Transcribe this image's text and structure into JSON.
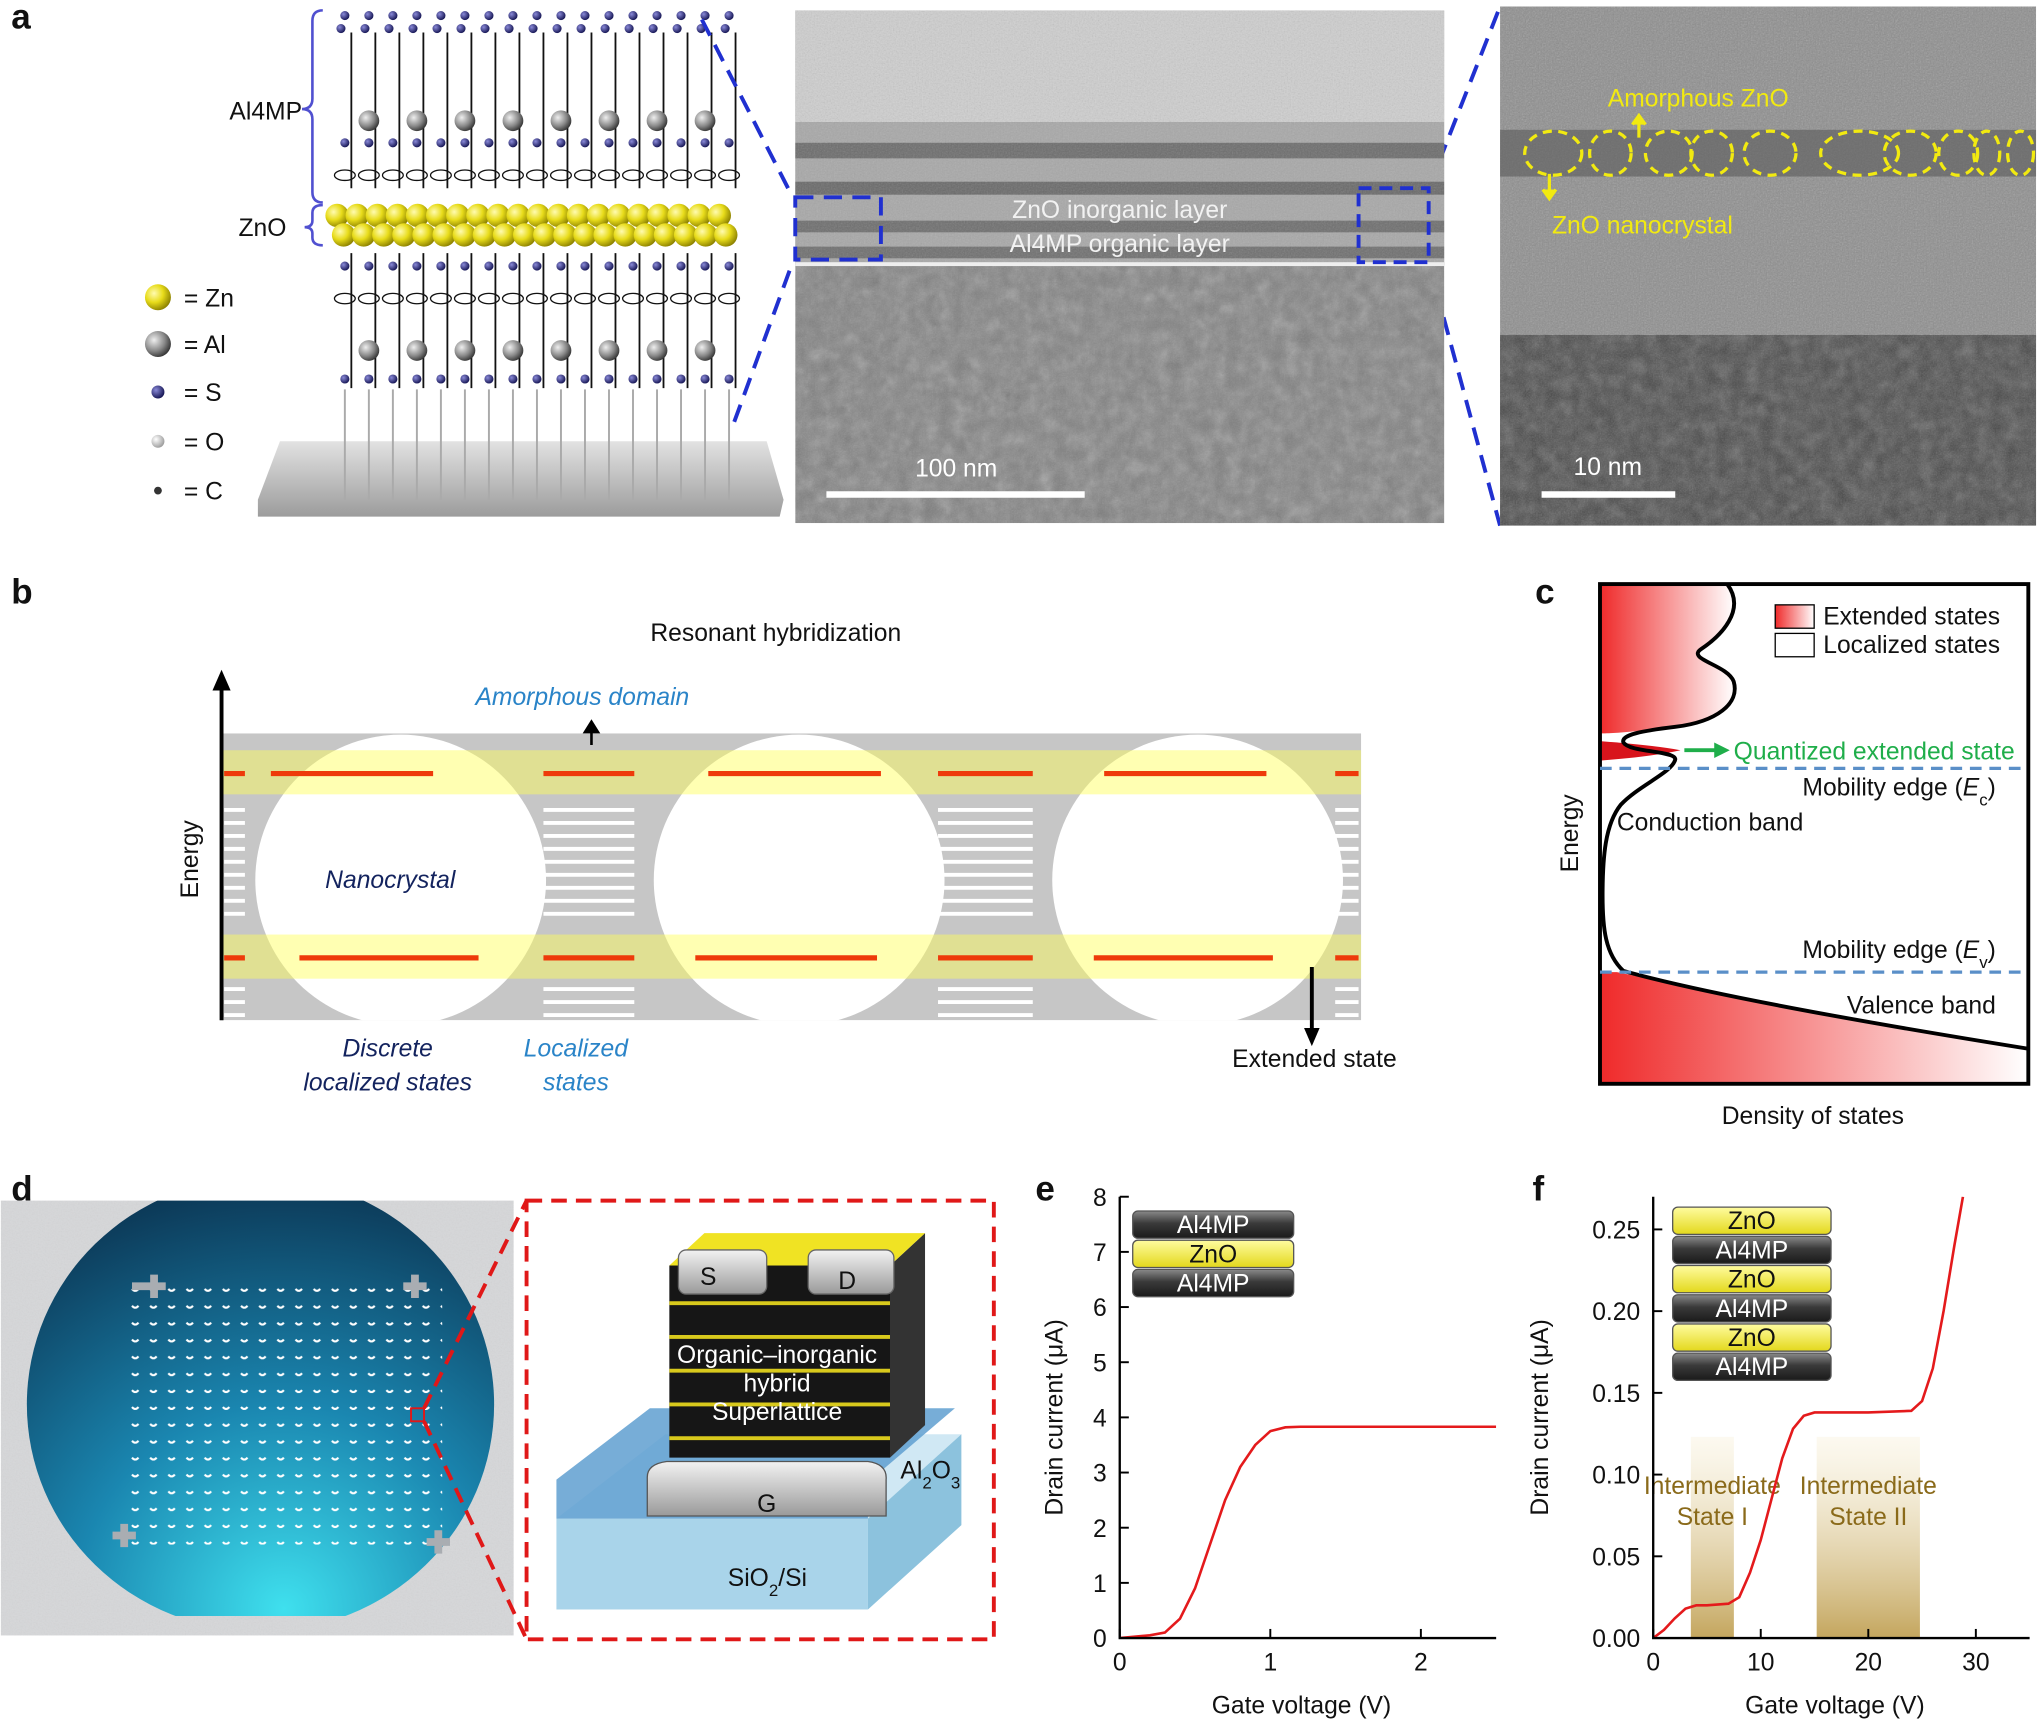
{
  "panel_labels": [
    "a",
    "b",
    "c",
    "d",
    "e",
    "f"
  ],
  "panel_a": {
    "schematic": {
      "layer_labels": [
        "Al4MP",
        "ZnO"
      ],
      "legend": [
        "= Zn",
        "= Al",
        "= S",
        "= O",
        "= C"
      ]
    },
    "tem": {
      "layer_labels": [
        "ZnO inorganic layer",
        "Al4MP organic layer"
      ],
      "scale_bar": "100 nm"
    },
    "hrtem": {
      "annotations": [
        "Amorphous ZnO",
        "ZnO nanocrystal"
      ],
      "scale_bar": "10 nm"
    }
  },
  "panel_b": {
    "title": "Resonant hybridization",
    "axis_label": "Energy",
    "amorphous": "Amorphous domain",
    "nanocrystal": "Nanocrystal",
    "discrete": [
      "Discrete",
      "localized states"
    ],
    "localized": [
      "Localized",
      "states"
    ],
    "extended": "Extended state"
  },
  "panel_c": {
    "legend": [
      "Extended states",
      "Localized states"
    ],
    "x_label": "Density of states",
    "y_label": "Energy",
    "quantized": "Quantized extended state",
    "mobility_edge_c": [
      "Mobility edge (",
      "E",
      "c",
      ")"
    ],
    "conduction": "Conduction band",
    "mobility_edge_v": [
      "Mobility edge (",
      "E",
      "v",
      ")"
    ],
    "valence": "Valence band"
  },
  "panel_d": {
    "contacts": [
      "S",
      "D"
    ],
    "stack": [
      "Organic–inorganic",
      "hybrid",
      "Superlattice"
    ],
    "gate": "G",
    "dielectric": [
      "Al",
      "2",
      "O",
      "3"
    ],
    "substrate": [
      "SiO",
      "2",
      "/Si"
    ]
  },
  "chart_data": [
    {
      "type": "line",
      "x_label": "Gate voltage (V)",
      "y_label": "Drain current (μA)",
      "inset": [
        "Al4MP",
        "ZnO",
        "Al4MP"
      ],
      "x": [
        0,
        0.2,
        0.3,
        0.4,
        0.5,
        0.6,
        0.7,
        0.8,
        0.9,
        1.0,
        1.1,
        1.2,
        1.5,
        2.0,
        2.5
      ],
      "series": [
        {
          "color": "#e41a1c",
          "values": [
            0,
            0.05,
            0.1,
            0.35,
            0.9,
            1.7,
            2.5,
            3.1,
            3.5,
            3.75,
            3.82,
            3.83,
            3.83,
            3.83,
            3.83
          ]
        }
      ],
      "xlim": [
        0,
        2.5
      ],
      "xticks": [
        0,
        1,
        2
      ],
      "ylim": [
        0,
        8
      ],
      "yticks": [
        0,
        1,
        2,
        3,
        4,
        5,
        6,
        7,
        8
      ]
    },
    {
      "type": "line",
      "x_label": "Gate voltage (V)",
      "y_label": "Drain current (μA)",
      "inset": [
        "ZnO",
        "Al4MP",
        "ZnO",
        "Al4MP",
        "ZnO",
        "Al4MP"
      ],
      "bands": [
        {
          "label": [
            "Intermediate",
            "State I"
          ],
          "x": [
            3.5,
            7.5
          ]
        },
        {
          "label": [
            "Intermediate",
            "State II"
          ],
          "x": [
            15.2,
            24.8
          ]
        }
      ],
      "x": [
        0,
        1,
        2,
        3,
        4,
        5,
        7,
        8,
        9,
        10,
        11,
        12,
        13,
        14,
        15,
        17,
        20,
        24,
        25,
        26,
        27,
        28,
        28.8
      ],
      "series": [
        {
          "color": "#e41a1c",
          "values": [
            0,
            0.005,
            0.012,
            0.018,
            0.02,
            0.02,
            0.021,
            0.025,
            0.04,
            0.06,
            0.085,
            0.11,
            0.128,
            0.136,
            0.138,
            0.138,
            0.138,
            0.139,
            0.145,
            0.165,
            0.2,
            0.24,
            0.27
          ]
        }
      ],
      "xlim": [
        0,
        35
      ],
      "xticks": [
        0,
        10,
        20,
        30
      ],
      "ylim": [
        0,
        0.27
      ],
      "yticks": [
        {
          "value": 0,
          "label": "0.00"
        },
        0.05,
        {
          "value": 0.1,
          "label": "0.10"
        },
        0.15,
        {
          "value": 0.2,
          "label": "0.20"
        },
        0.25
      ]
    }
  ]
}
